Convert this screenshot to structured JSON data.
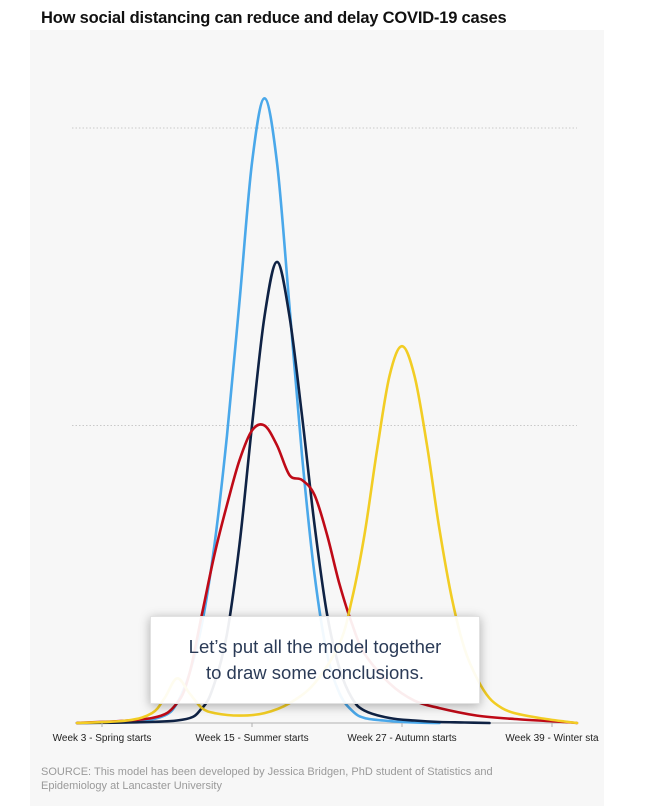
{
  "title": "How social distancing can reduce and delay COVID-19 cases",
  "overlay": {
    "line1": "Let’s put all the model together",
    "line2": "to draw some conclusions."
  },
  "source": {
    "line1": "SOURCE: This model has been developed by Jessica Bridgen, PhD student of Statistics and",
    "line2": "Epidemiology at Lancaster University"
  },
  "chart_data": {
    "type": "line",
    "xlabel": "",
    "ylabel": "",
    "x_ticks": [
      {
        "week": 3,
        "label": "Week 3  - Spring starts"
      },
      {
        "week": 15,
        "label": "Week 15  - Summer starts"
      },
      {
        "week": 27,
        "label": "Week 27  - Autumn starts"
      },
      {
        "week": 39,
        "label": "Week 39  - Winter sta"
      }
    ],
    "xlim": [
      1,
      41
    ],
    "ylim": [
      0,
      120
    ],
    "gridlines_y": [
      60,
      120
    ],
    "grid": true,
    "colors": {
      "light_blue": "#4aa8ea",
      "navy": "#0f2244",
      "red": "#bf0a17",
      "yellow": "#f2cd24"
    },
    "series": [
      {
        "color": "#4aa8ea",
        "x": [
          1,
          6,
          8,
          9,
          10,
          11,
          12,
          13,
          14,
          15,
          16,
          17,
          18,
          19,
          20,
          21,
          22,
          23,
          24,
          26,
          28,
          30
        ],
        "y": [
          0,
          0.5,
          1.5,
          4,
          10,
          20,
          36,
          58,
          85,
          113,
          126,
          113,
          84,
          54,
          30,
          14,
          6,
          2.5,
          1,
          0.4,
          0.1,
          0
        ]
      },
      {
        "color": "#0f2244",
        "x": [
          1,
          9,
          11,
          12,
          13,
          14,
          15,
          16,
          17,
          18,
          19,
          20,
          21,
          22,
          23,
          24,
          26,
          28,
          30,
          32,
          34
        ],
        "y": [
          0,
          0.5,
          3,
          8,
          18,
          36,
          60,
          82,
          93,
          82,
          62,
          40,
          22,
          11,
          5,
          2.5,
          1,
          0.5,
          0.2,
          0.1,
          0
        ]
      },
      {
        "color": "#bf0a17",
        "x": [
          1,
          7,
          9,
          10,
          11,
          12,
          13,
          14,
          15,
          16,
          17,
          18,
          19,
          20,
          21,
          22,
          23,
          24,
          26,
          28,
          30,
          33,
          36,
          40,
          41
        ],
        "y": [
          0,
          1,
          4,
          10,
          22,
          34,
          44,
          53,
          59,
          60,
          56,
          50,
          49,
          46,
          38,
          28,
          20,
          14,
          8,
          4.5,
          3,
          1.5,
          0.8,
          0.2,
          0
        ]
      },
      {
        "color": "#f2cd24",
        "x": [
          1,
          5,
          7,
          8,
          9,
          10,
          11,
          12,
          14,
          16,
          18,
          20,
          22,
          23,
          24,
          25,
          26,
          27,
          28,
          29,
          30,
          31,
          32,
          33,
          34,
          35,
          36,
          38,
          40,
          41
        ],
        "y": [
          0,
          0.5,
          2,
          5,
          9,
          6,
          3,
          2,
          1.5,
          2,
          4,
          8,
          16,
          25,
          38,
          55,
          70,
          76,
          70,
          56,
          39,
          25,
          15,
          9,
          5,
          3,
          2,
          1,
          0.3,
          0
        ]
      }
    ]
  }
}
